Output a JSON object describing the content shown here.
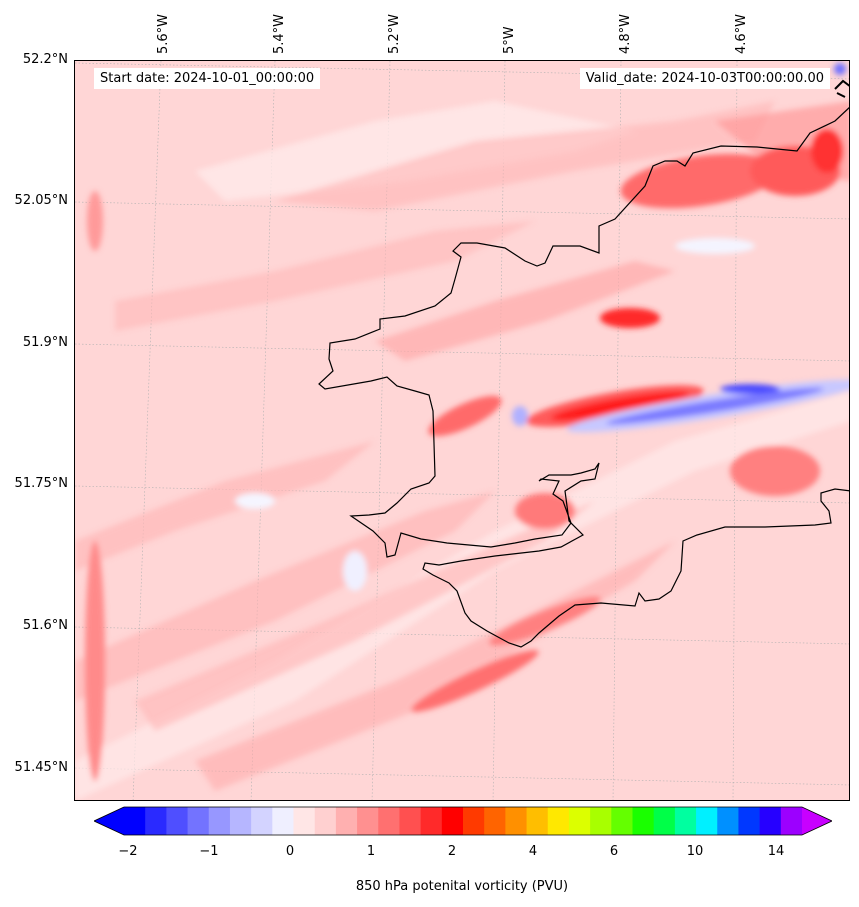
{
  "header": {
    "start_date": "Start date: 2024-10-01_00:00:00",
    "valid_date": "Valid_date: 2024-10-03T00:00:00.00"
  },
  "axes": {
    "latitudes": [
      "52.2°N",
      "52.05°N",
      "51.9°N",
      "51.75°N",
      "51.6°N",
      "51.45°N"
    ],
    "longitudes": [
      "5.6°W",
      "5.4°W",
      "5.2°W",
      "5°W",
      "4.8°W",
      "4.6°W"
    ]
  },
  "colorbar": {
    "label": "850 hPa potenital vorticity (PVU)",
    "ticks": [
      "−2",
      "−1",
      "0",
      "1",
      "2",
      "4",
      "6",
      "10",
      "14"
    ],
    "colors": [
      "#0000ff",
      "#2a2aff",
      "#4f4fff",
      "#7373ff",
      "#9797ff",
      "#b6b6ff",
      "#d3d3ff",
      "#efefff",
      "#ffe6e6",
      "#ffd0d0",
      "#ffb0b0",
      "#ff9090",
      "#ff7070",
      "#ff5050",
      "#ff2a2a",
      "#ff0000",
      "#ff3a00",
      "#ff6400",
      "#ff9000",
      "#ffbe00",
      "#ffe800",
      "#dcff00",
      "#a8ff00",
      "#64ff00",
      "#1aff00",
      "#00ff48",
      "#00ffa0",
      "#00f0ff",
      "#0090ff",
      "#0038ff",
      "#2600ff",
      "#9c00ff"
    ],
    "extend_low": "#0000ff",
    "extend_high": "#c800ff"
  },
  "map": {
    "background": "#ffd6d6",
    "coastline_color": "#000000"
  }
}
